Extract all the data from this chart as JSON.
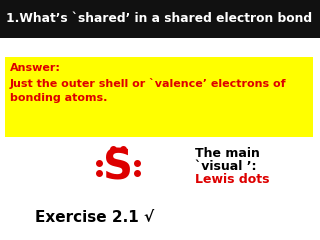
{
  "title": "1.What’s `shared’ in a shared electron bond  ?",
  "title_bg": "#111111",
  "title_color": "#ffffff",
  "answer_bg": "#ffff00",
  "answer_text_line1": "Answer:",
  "answer_text_line2": "Just the outer shell or `valence’ electrons of",
  "answer_text_line3": "bonding atoms.",
  "answer_color": "#dd0000",
  "lewis_symbol": "S",
  "lewis_color": "#dd0000",
  "dot_color": "#dd0000",
  "visual_line1": "The main",
  "visual_line2": "`visual ’:",
  "visual_line3": "Lewis dots",
  "visual_color1": "#000000",
  "visual_color2": "#000000",
  "visual_color3": "#dd0000",
  "exercise_text": "Exercise 2.1 √",
  "exercise_color": "#000000",
  "bg_color": "#ffffff",
  "fig_width": 3.2,
  "fig_height": 2.4,
  "dpi": 100
}
